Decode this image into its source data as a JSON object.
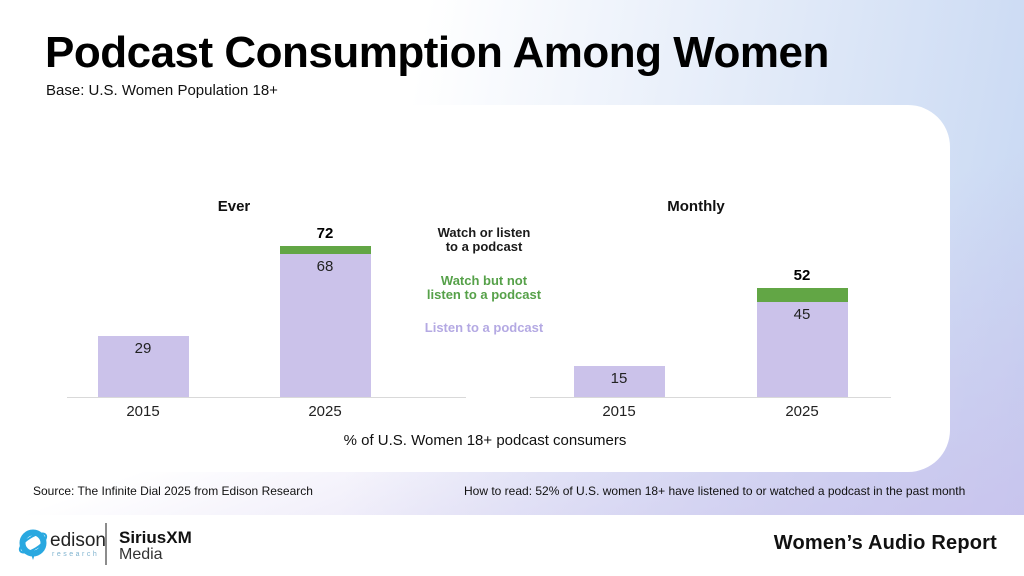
{
  "header": {
    "title": "Podcast Consumption Among Women",
    "base_note": "Base: U.S. Women Population 18+"
  },
  "chart_data": {
    "type": "bar",
    "title": "Podcast Consumption Among Women",
    "subtitle": "Base: U.S. Women Population 18+",
    "note": "% of U.S. Women 18+ podcast consumers",
    "ylim": [
      0,
      80
    ],
    "grid": false,
    "legend_position": "center-between-groups",
    "legend": [
      {
        "label": "Watch or listen to a podcast",
        "lines": [
          "Watch or listen",
          "to a podcast"
        ],
        "color": "#1a1a1a"
      },
      {
        "label": "Watch but not listen to a podcast",
        "lines": [
          "Watch but not",
          "listen to a podcast"
        ],
        "color": "#56a149"
      },
      {
        "label": "Listen to a podcast",
        "lines": [
          "Listen to a podcast"
        ],
        "color": "#b4a9e3"
      }
    ],
    "groups": [
      {
        "title": "Ever",
        "categories": [
          "2015",
          "2025"
        ],
        "series": [
          {
            "name": "Listen to a podcast",
            "color": "#cbc2ea",
            "values": [
              29,
              68
            ]
          },
          {
            "name": "Watch but not listen to a podcast",
            "color": "#62a645",
            "values": [
              0,
              4
            ]
          }
        ],
        "totals": [
          29,
          72
        ],
        "total_labels_shown": [
          false,
          true
        ]
      },
      {
        "title": "Monthly",
        "categories": [
          "2015",
          "2025"
        ],
        "series": [
          {
            "name": "Listen to a podcast",
            "color": "#cbc2ea",
            "values": [
              15,
              45
            ]
          },
          {
            "name": "Watch but not listen to a podcast",
            "color": "#62a645",
            "values": [
              0,
              7
            ]
          }
        ],
        "totals": [
          15,
          52
        ],
        "total_labels_shown": [
          false,
          true
        ]
      }
    ]
  },
  "annotations": {
    "source": "Source: The Infinite Dial 2025 from Edison Research",
    "how_to_read": "How to read: 52% of U.S. women 18+ have listened to or watched a podcast in the past month"
  },
  "footer": {
    "brand_edison": "edison",
    "brand_edison_sub": "research",
    "brand_siriusxm": "SiriusXM",
    "brand_siriusxm_sub": "Media",
    "report_title": "Women’s Audio Report"
  },
  "colors": {
    "bar_purple": "#cbc2ea",
    "bar_green": "#62a645",
    "legend_green": "#56a149",
    "legend_purple": "#b4a9e3",
    "axis_line": "#d9d9d9",
    "bg_blue": "#c5d6f2",
    "bg_purple": "#c9c0ec",
    "edison_blue": "#29a8e0"
  }
}
